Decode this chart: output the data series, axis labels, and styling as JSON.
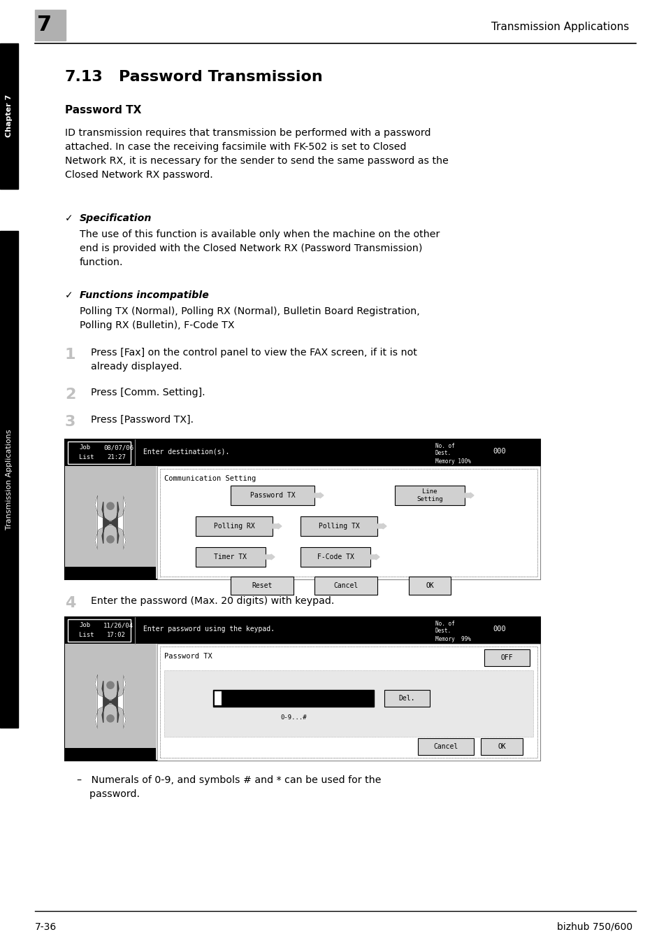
{
  "page_bg": "#ffffff",
  "header_bg": "#aaaaaa",
  "header_number": "7",
  "header_title": "Transmission Applications",
  "section_number": "7.13",
  "section_title": "Password Transmission",
  "subsection_title": "Password TX",
  "body_text1": "ID transmission requires that transmission be performed with a password\nattached. In case the receiving facsimile with FK-502 is set to Closed\nNetwork RX, it is necessary for the sender to send the same password as the\nClosed Network RX password.",
  "spec_label": "Specification",
  "spec_text": "The use of this function is available only when the machine on the other\nend is provided with the Closed Network RX (Password Transmission)\nfunction.",
  "func_label": "Functions incompatible",
  "func_text": "Polling TX (Normal), Polling RX (Normal), Bulletin Board Registration,\nPolling RX (Bulletin), F-Code TX",
  "step1_num": "1",
  "step1_text": "Press [Fax] on the control panel to view the FAX screen, if it is not\nalready displayed.",
  "step2_num": "2",
  "step2_text": "Press [Comm. Setting].",
  "step3_num": "3",
  "step3_text": "Press [Password TX].",
  "step4_num": "4",
  "step4_text": "Enter the password (Max. 20 digits) with keypad.",
  "bullet_note": "–   Numerals of 0-9, and symbols # and * can be used for the\n    password.",
  "footer_left": "7-36",
  "footer_right": "bizhub 750/600",
  "side_label_top": "Chapter 7",
  "side_label_bottom": "Transmission Applications",
  "text_color": "#000000"
}
